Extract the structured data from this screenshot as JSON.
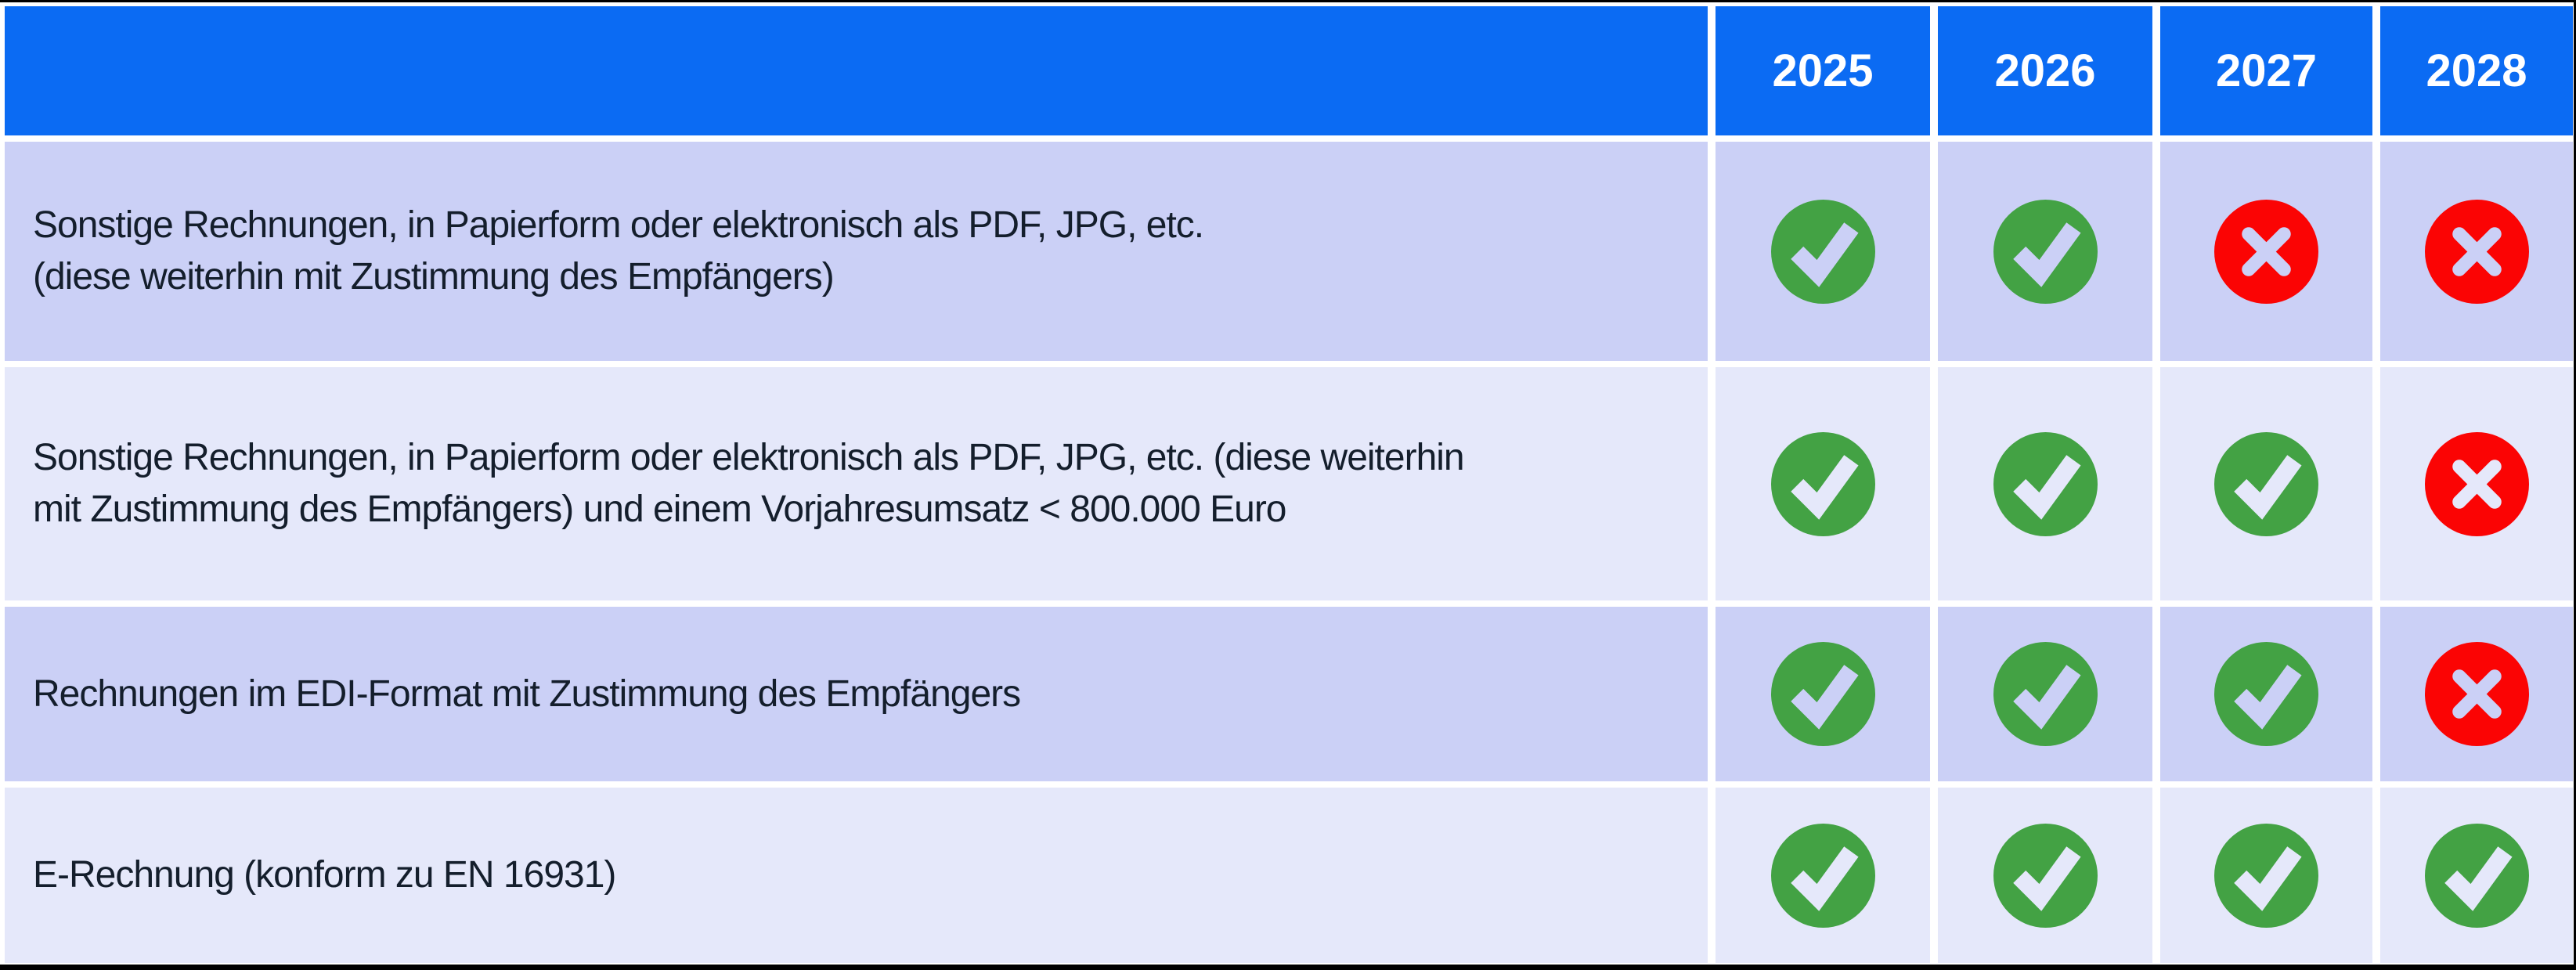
{
  "meta": {
    "type": "comparison-table",
    "language": "de"
  },
  "colors": {
    "header_bg": "#0B6BF3",
    "header_text": "#FFFFFF",
    "row_dark_bg": "#CBD0F6",
    "row_light_bg": "#E5E8FA",
    "label_text": "#141E2C",
    "check_green": "#43A244",
    "cross_red": "#FB0404",
    "separator": "#FFFFFF",
    "frame": "#000000"
  },
  "header": {
    "label_column_title": "",
    "years": [
      "2025",
      "2026",
      "2027",
      "2028"
    ]
  },
  "rows": [
    {
      "label": "Sonstige Rechnungen, in Papierform oder elektronisch als PDF, JPG, etc. (diese weiterhin mit Zustimmung des Empfängers)",
      "lines": [
        "Sonstige Rechnungen, in Papierform oder elektronisch als PDF, JPG, etc.",
        "(diese weiterhin mit Zustimmung des Empfängers)"
      ],
      "marks": [
        "check",
        "check",
        "cross",
        "cross"
      ]
    },
    {
      "label": "Sonstige Rechnungen, in Papierform oder elektronisch als PDF, JPG, etc. (diese weiterhin mit Zustimmung des Empfängers) und einem Vorjahresumsatz < 800.000 Euro",
      "lines": [
        "Sonstige Rechnungen, in Papierform oder elektronisch als PDF, JPG, etc. (diese weiterhin",
        "mit Zustimmung des Empfängers) und einem Vorjahresumsatz < 800.000 Euro"
      ],
      "marks": [
        "check",
        "check",
        "check",
        "cross"
      ]
    },
    {
      "label": "Rechnungen im EDI-Format mit Zustimmung des Empfängers",
      "lines": [
        "Rechnungen im EDI-Format mit Zustimmung des Empfängers"
      ],
      "marks": [
        "check",
        "check",
        "check",
        "cross"
      ]
    },
    {
      "label": "E-Rechnung (konform zu EN 16931)",
      "lines": [
        "E-Rechnung (konform zu EN 16931)"
      ],
      "marks": [
        "check",
        "check",
        "check",
        "check"
      ]
    }
  ],
  "icons": {
    "check": "check-icon",
    "cross": "cross-icon"
  }
}
